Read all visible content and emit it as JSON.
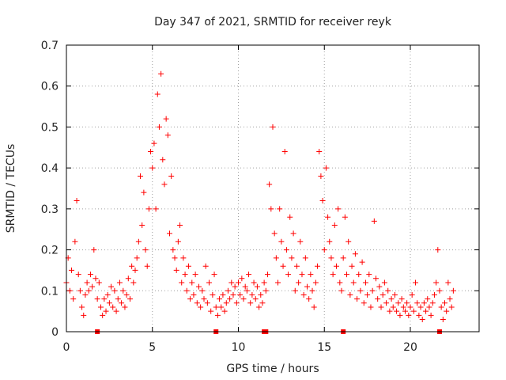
{
  "chart_data": {
    "type": "scatter",
    "title": "Day 347 of 2021, SRMTID for receiver reyk",
    "xlabel": "GPS time / hours",
    "ylabel": "SRMTID / TECUs",
    "xlim": [
      0,
      24
    ],
    "ylim": [
      0,
      0.7
    ],
    "xticks": [
      0,
      5,
      10,
      15,
      20
    ],
    "yticks": [
      0,
      0.1,
      0.2,
      0.3,
      0.4,
      0.5,
      0.6,
      0.7
    ],
    "grid": true,
    "marker": "+",
    "color": "#ff0000",
    "baseline_markers_x": [
      1.8,
      8.7,
      11.5,
      11.6,
      16.1,
      21.7
    ],
    "series": [
      {
        "name": "SRMTID",
        "points": [
          [
            0.0,
            0.12
          ],
          [
            0.1,
            0.18
          ],
          [
            0.2,
            0.1
          ],
          [
            0.3,
            0.15
          ],
          [
            0.4,
            0.08
          ],
          [
            0.5,
            0.22
          ],
          [
            0.6,
            0.32
          ],
          [
            0.7,
            0.14
          ],
          [
            0.8,
            0.1
          ],
          [
            0.9,
            0.06
          ],
          [
            1.0,
            0.04
          ],
          [
            1.1,
            0.09
          ],
          [
            1.2,
            0.12
          ],
          [
            1.3,
            0.1
          ],
          [
            1.4,
            0.14
          ],
          [
            1.5,
            0.11
          ],
          [
            1.6,
            0.2
          ],
          [
            1.7,
            0.13
          ],
          [
            1.8,
            0.08
          ],
          [
            1.9,
            0.12
          ],
          [
            2.0,
            0.06
          ],
          [
            2.1,
            0.04
          ],
          [
            2.2,
            0.08
          ],
          [
            2.3,
            0.05
          ],
          [
            2.4,
            0.09
          ],
          [
            2.5,
            0.07
          ],
          [
            2.6,
            0.11
          ],
          [
            2.7,
            0.06
          ],
          [
            2.8,
            0.1
          ],
          [
            2.9,
            0.05
          ],
          [
            3.0,
            0.08
          ],
          [
            3.1,
            0.12
          ],
          [
            3.2,
            0.07
          ],
          [
            3.3,
            0.1
          ],
          [
            3.4,
            0.06
          ],
          [
            3.5,
            0.09
          ],
          [
            3.6,
            0.13
          ],
          [
            3.7,
            0.08
          ],
          [
            3.8,
            0.16
          ],
          [
            3.9,
            0.12
          ],
          [
            4.0,
            0.15
          ],
          [
            4.1,
            0.18
          ],
          [
            4.2,
            0.22
          ],
          [
            4.3,
            0.38
          ],
          [
            4.4,
            0.26
          ],
          [
            4.5,
            0.34
          ],
          [
            4.6,
            0.2
          ],
          [
            4.7,
            0.16
          ],
          [
            4.8,
            0.3
          ],
          [
            4.9,
            0.44
          ],
          [
            5.0,
            0.4
          ],
          [
            5.1,
            0.46
          ],
          [
            5.2,
            0.3
          ],
          [
            5.3,
            0.58
          ],
          [
            5.4,
            0.5
          ],
          [
            5.5,
            0.63
          ],
          [
            5.6,
            0.42
          ],
          [
            5.7,
            0.36
          ],
          [
            5.8,
            0.52
          ],
          [
            5.9,
            0.48
          ],
          [
            6.0,
            0.24
          ],
          [
            6.1,
            0.38
          ],
          [
            6.2,
            0.2
          ],
          [
            6.3,
            0.18
          ],
          [
            6.4,
            0.15
          ],
          [
            6.5,
            0.22
          ],
          [
            6.6,
            0.26
          ],
          [
            6.7,
            0.12
          ],
          [
            6.8,
            0.18
          ],
          [
            6.9,
            0.14
          ],
          [
            7.0,
            0.1
          ],
          [
            7.1,
            0.16
          ],
          [
            7.2,
            0.08
          ],
          [
            7.3,
            0.12
          ],
          [
            7.4,
            0.09
          ],
          [
            7.5,
            0.14
          ],
          [
            7.6,
            0.07
          ],
          [
            7.7,
            0.11
          ],
          [
            7.8,
            0.06
          ],
          [
            7.9,
            0.1
          ],
          [
            8.0,
            0.08
          ],
          [
            8.1,
            0.16
          ],
          [
            8.2,
            0.07
          ],
          [
            8.3,
            0.12
          ],
          [
            8.4,
            0.05
          ],
          [
            8.5,
            0.09
          ],
          [
            8.6,
            0.14
          ],
          [
            8.7,
            0.06
          ],
          [
            8.8,
            0.04
          ],
          [
            8.9,
            0.08
          ],
          [
            9.0,
            0.06
          ],
          [
            9.1,
            0.09
          ],
          [
            9.2,
            0.05
          ],
          [
            9.3,
            0.07
          ],
          [
            9.4,
            0.1
          ],
          [
            9.5,
            0.08
          ],
          [
            9.6,
            0.12
          ],
          [
            9.7,
            0.09
          ],
          [
            9.8,
            0.11
          ],
          [
            9.9,
            0.07
          ],
          [
            10.0,
            0.12
          ],
          [
            10.1,
            0.09
          ],
          [
            10.2,
            0.13
          ],
          [
            10.3,
            0.08
          ],
          [
            10.4,
            0.11
          ],
          [
            10.5,
            0.1
          ],
          [
            10.6,
            0.14
          ],
          [
            10.7,
            0.07
          ],
          [
            10.8,
            0.09
          ],
          [
            10.9,
            0.12
          ],
          [
            11.0,
            0.08
          ],
          [
            11.1,
            0.11
          ],
          [
            11.2,
            0.06
          ],
          [
            11.3,
            0.09
          ],
          [
            11.4,
            0.07
          ],
          [
            11.5,
            0.12
          ],
          [
            11.6,
            0.1
          ],
          [
            11.7,
            0.14
          ],
          [
            11.8,
            0.36
          ],
          [
            11.9,
            0.3
          ],
          [
            12.0,
            0.5
          ],
          [
            12.1,
            0.24
          ],
          [
            12.2,
            0.18
          ],
          [
            12.3,
            0.12
          ],
          [
            12.4,
            0.3
          ],
          [
            12.5,
            0.22
          ],
          [
            12.6,
            0.16
          ],
          [
            12.7,
            0.44
          ],
          [
            12.8,
            0.2
          ],
          [
            12.9,
            0.14
          ],
          [
            13.0,
            0.28
          ],
          [
            13.1,
            0.18
          ],
          [
            13.2,
            0.24
          ],
          [
            13.3,
            0.1
          ],
          [
            13.4,
            0.16
          ],
          [
            13.5,
            0.12
          ],
          [
            13.6,
            0.22
          ],
          [
            13.7,
            0.14
          ],
          [
            13.8,
            0.09
          ],
          [
            13.9,
            0.18
          ],
          [
            14.0,
            0.11
          ],
          [
            14.1,
            0.08
          ],
          [
            14.2,
            0.14
          ],
          [
            14.3,
            0.1
          ],
          [
            14.4,
            0.06
          ],
          [
            14.5,
            0.12
          ],
          [
            14.6,
            0.16
          ],
          [
            14.7,
            0.44
          ],
          [
            14.8,
            0.38
          ],
          [
            14.9,
            0.32
          ],
          [
            15.0,
            0.2
          ],
          [
            15.1,
            0.4
          ],
          [
            15.2,
            0.28
          ],
          [
            15.3,
            0.22
          ],
          [
            15.4,
            0.18
          ],
          [
            15.5,
            0.14
          ],
          [
            15.6,
            0.26
          ],
          [
            15.7,
            0.16
          ],
          [
            15.8,
            0.3
          ],
          [
            15.9,
            0.12
          ],
          [
            16.0,
            0.1
          ],
          [
            16.1,
            0.18
          ],
          [
            16.2,
            0.28
          ],
          [
            16.3,
            0.14
          ],
          [
            16.4,
            0.22
          ],
          [
            16.5,
            0.09
          ],
          [
            16.6,
            0.16
          ],
          [
            16.7,
            0.12
          ],
          [
            16.8,
            0.19
          ],
          [
            16.9,
            0.08
          ],
          [
            17.0,
            0.14
          ],
          [
            17.1,
            0.1
          ],
          [
            17.2,
            0.17
          ],
          [
            17.3,
            0.07
          ],
          [
            17.4,
            0.12
          ],
          [
            17.5,
            0.09
          ],
          [
            17.6,
            0.14
          ],
          [
            17.7,
            0.06
          ],
          [
            17.8,
            0.1
          ],
          [
            17.9,
            0.27
          ],
          [
            18.0,
            0.13
          ],
          [
            18.1,
            0.08
          ],
          [
            18.2,
            0.11
          ],
          [
            18.3,
            0.06
          ],
          [
            18.4,
            0.09
          ],
          [
            18.5,
            0.12
          ],
          [
            18.6,
            0.07
          ],
          [
            18.7,
            0.1
          ],
          [
            18.8,
            0.05
          ],
          [
            18.9,
            0.08
          ],
          [
            19.0,
            0.06
          ],
          [
            19.1,
            0.09
          ],
          [
            19.2,
            0.05
          ],
          [
            19.3,
            0.07
          ],
          [
            19.4,
            0.04
          ],
          [
            19.5,
            0.08
          ],
          [
            19.6,
            0.06
          ],
          [
            19.7,
            0.05
          ],
          [
            19.8,
            0.07
          ],
          [
            19.9,
            0.04
          ],
          [
            20.0,
            0.06
          ],
          [
            20.1,
            0.09
          ],
          [
            20.2,
            0.05
          ],
          [
            20.3,
            0.12
          ],
          [
            20.4,
            0.07
          ],
          [
            20.5,
            0.04
          ],
          [
            20.6,
            0.06
          ],
          [
            20.7,
            0.03
          ],
          [
            20.8,
            0.07
          ],
          [
            20.9,
            0.05
          ],
          [
            21.0,
            0.08
          ],
          [
            21.1,
            0.06
          ],
          [
            21.2,
            0.04
          ],
          [
            21.3,
            0.07
          ],
          [
            21.4,
            0.09
          ],
          [
            21.5,
            0.12
          ],
          [
            21.6,
            0.2
          ],
          [
            21.7,
            0.1
          ],
          [
            21.8,
            0.06
          ],
          [
            21.9,
            0.03
          ],
          [
            22.0,
            0.07
          ],
          [
            22.1,
            0.05
          ],
          [
            22.2,
            0.12
          ],
          [
            22.3,
            0.08
          ],
          [
            22.4,
            0.06
          ],
          [
            22.5,
            0.1
          ]
        ]
      }
    ]
  }
}
